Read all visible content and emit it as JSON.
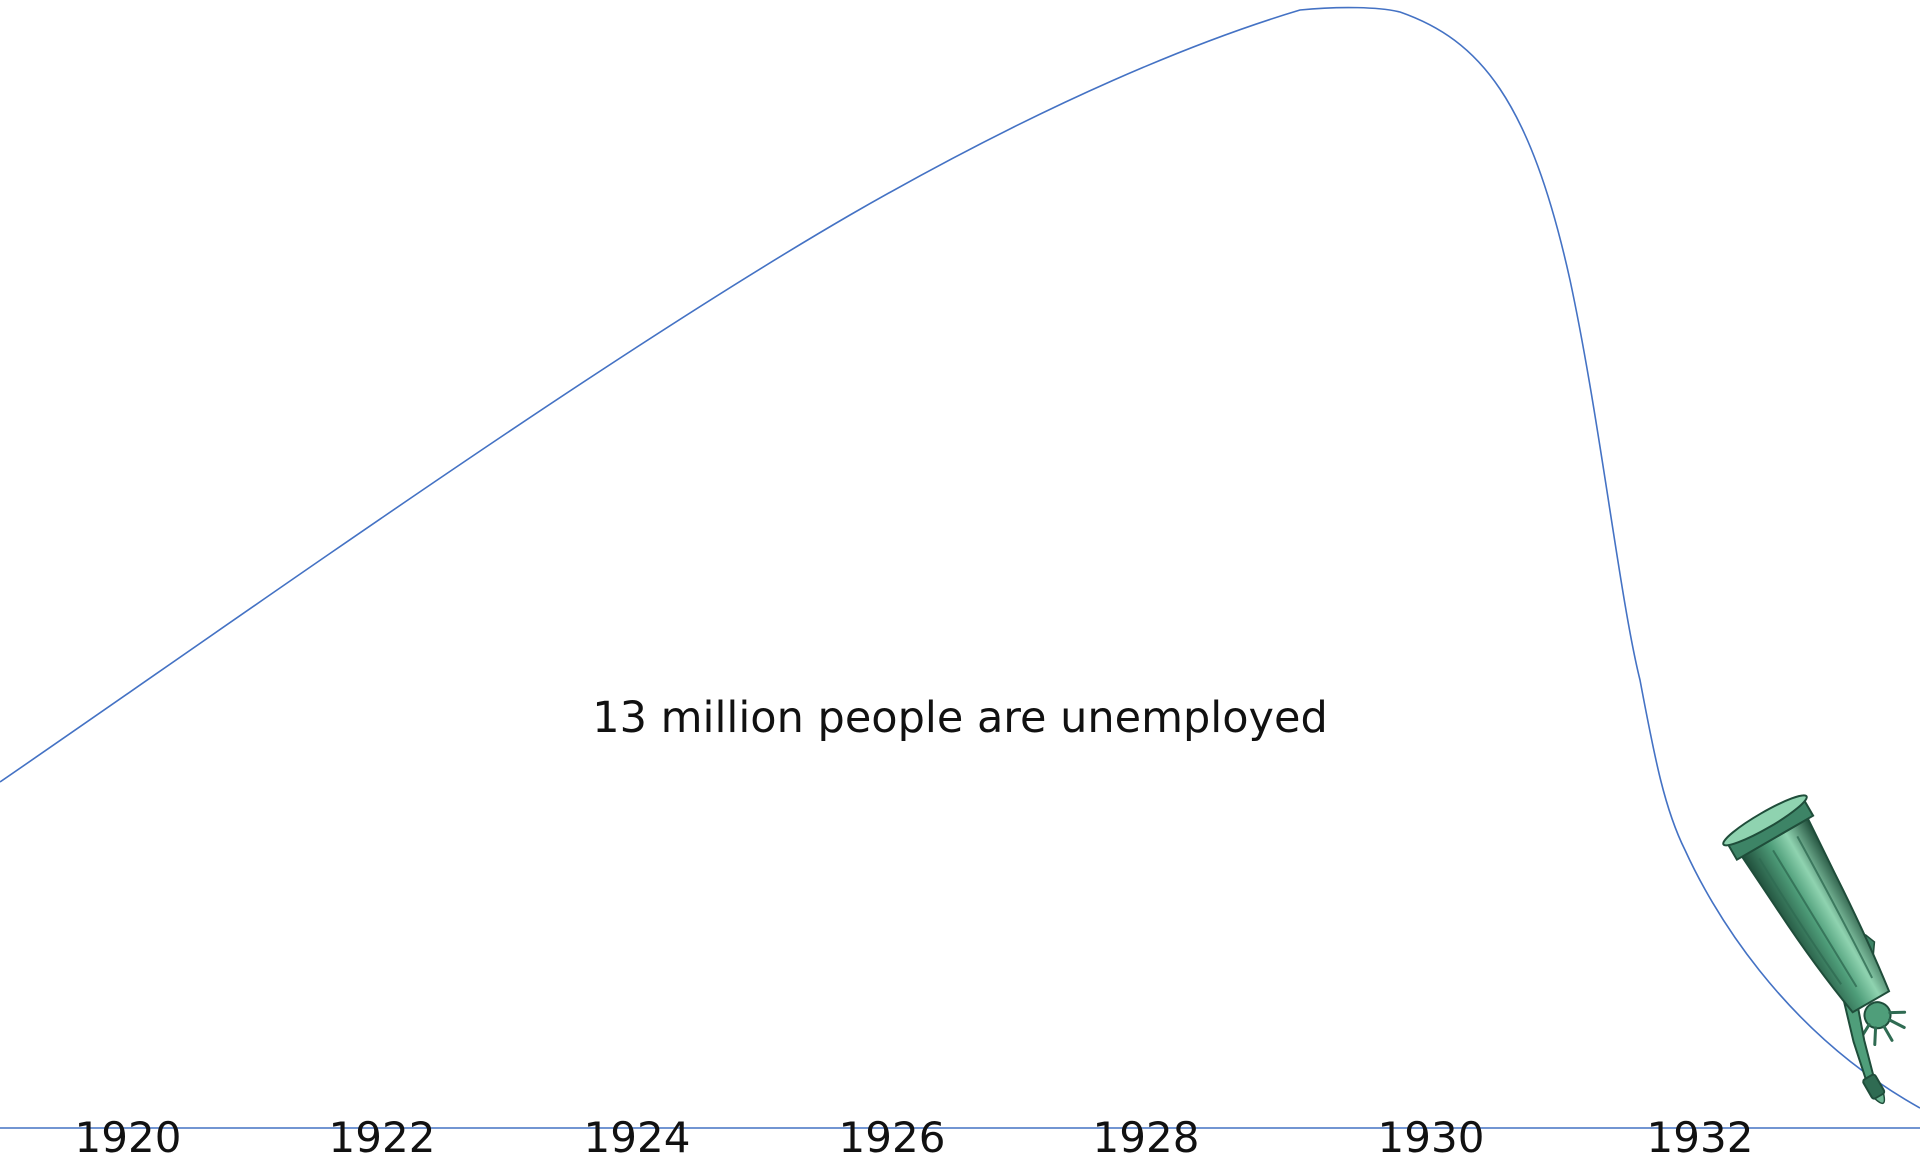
{
  "caption": "13 million people are unemployed",
  "timeline": {
    "years": [
      "1920",
      "1922",
      "1924",
      "1926",
      "1928",
      "1930",
      "1932"
    ]
  },
  "statue": {
    "icon": "statue-of-liberty-icon",
    "orientation": "upside-down, falling"
  },
  "colors": {
    "line": "#4472c4",
    "text": "#111111",
    "statue_light": "#8fd3b0",
    "statue_mid": "#4f9e7a",
    "statue_dark": "#1f4d3a"
  }
}
